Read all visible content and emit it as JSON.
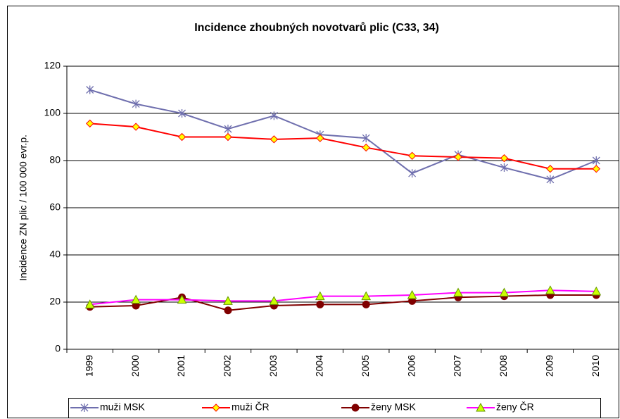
{
  "chart_data": {
    "type": "line",
    "title": "Incidence zhoubných novotvarů plic (C33, 34)",
    "y_label": "Incidence ZN plic / 100 000 evr.p.",
    "categories": [
      "1999",
      "2000",
      "2001",
      "2002",
      "2003",
      "2004",
      "2005",
      "2006",
      "2007",
      "2008",
      "2009",
      "2010"
    ],
    "ylim": [
      0,
      120
    ],
    "yticks": [
      0,
      20,
      40,
      60,
      80,
      100,
      120
    ],
    "grid": true,
    "legend": "bottom",
    "series": [
      {
        "name": "muži MSK",
        "color": "#6f6fae",
        "marker": "asterisk",
        "marker_fill": "#6f6fae",
        "values": [
          110,
          104,
          100,
          93.4,
          99,
          91,
          89.5,
          74.6,
          82.5,
          77,
          72,
          80
        ]
      },
      {
        "name": "muži ČR",
        "color": "#ff0000",
        "marker": "diamond",
        "marker_fill": "#ffff00",
        "values": [
          95.7,
          94.3,
          90,
          90,
          89,
          89.5,
          85.5,
          82,
          81.5,
          81,
          76.5,
          76.5
        ]
      },
      {
        "name": "ženy MSK",
        "color": "#800000",
        "marker": "circle",
        "marker_fill": "#800000",
        "values": [
          18,
          18.5,
          22,
          16.5,
          18.5,
          19,
          19,
          20.5,
          22,
          22.5,
          23,
          23
        ]
      },
      {
        "name": "ženy ČR",
        "color": "#ff00ff",
        "marker": "triangle",
        "marker_fill": "#ccff00",
        "values": [
          19,
          21,
          21,
          20.5,
          20.5,
          22.5,
          22.5,
          23,
          24,
          24,
          25,
          24.5
        ]
      }
    ]
  }
}
